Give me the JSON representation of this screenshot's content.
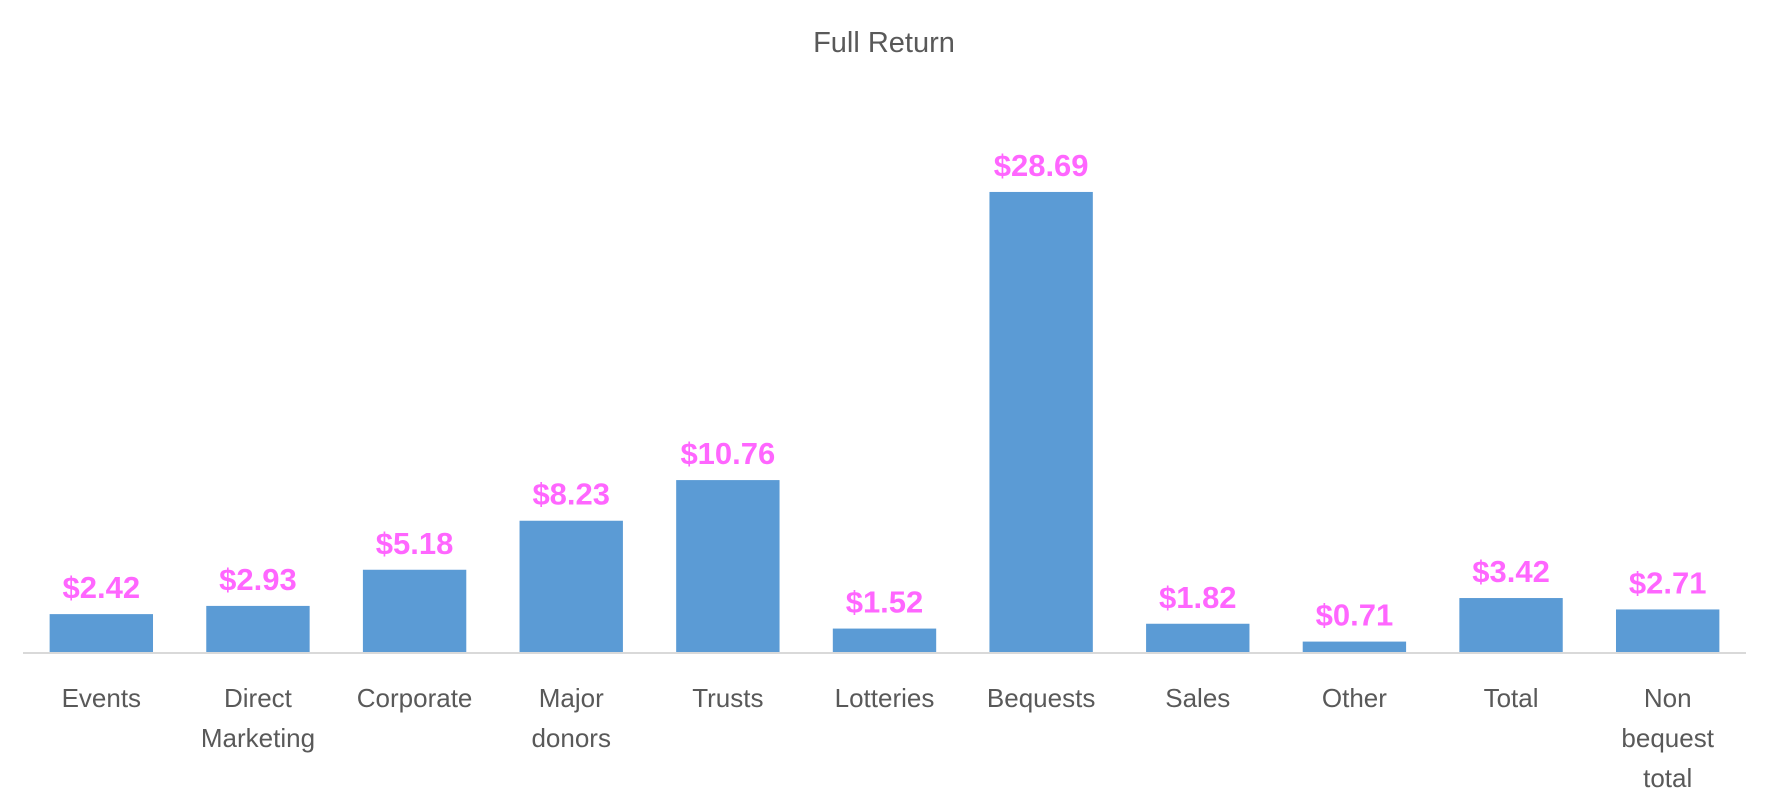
{
  "chart_data": {
    "type": "bar",
    "title": "Full Return",
    "categories": [
      [
        "Events"
      ],
      [
        "Direct",
        "Marketing"
      ],
      [
        "Corporate"
      ],
      [
        "Major",
        "donors"
      ],
      [
        "Trusts"
      ],
      [
        "Lotteries"
      ],
      [
        "Bequests"
      ],
      [
        "Sales"
      ],
      [
        "Other"
      ],
      [
        "Total"
      ],
      [
        "Non",
        "bequest",
        "total"
      ]
    ],
    "values": [
      2.42,
      2.93,
      5.18,
      8.23,
      10.76,
      1.52,
      28.69,
      1.82,
      0.71,
      3.42,
      2.71
    ],
    "data_labels": [
      "$2.42",
      "$2.93",
      "$5.18",
      "$8.23",
      "$10.76",
      "$1.52",
      "$28.69",
      "$1.82",
      "$0.71",
      "$3.42",
      "$2.71"
    ],
    "xlabel": "",
    "ylabel": "",
    "ylim": [
      0,
      32
    ],
    "grid": false,
    "legend": "none",
    "colors": {
      "bar": "#5B9BD5",
      "data_label": "#FF66FF",
      "axis": "#D9D9D9",
      "text": "#595959"
    }
  }
}
